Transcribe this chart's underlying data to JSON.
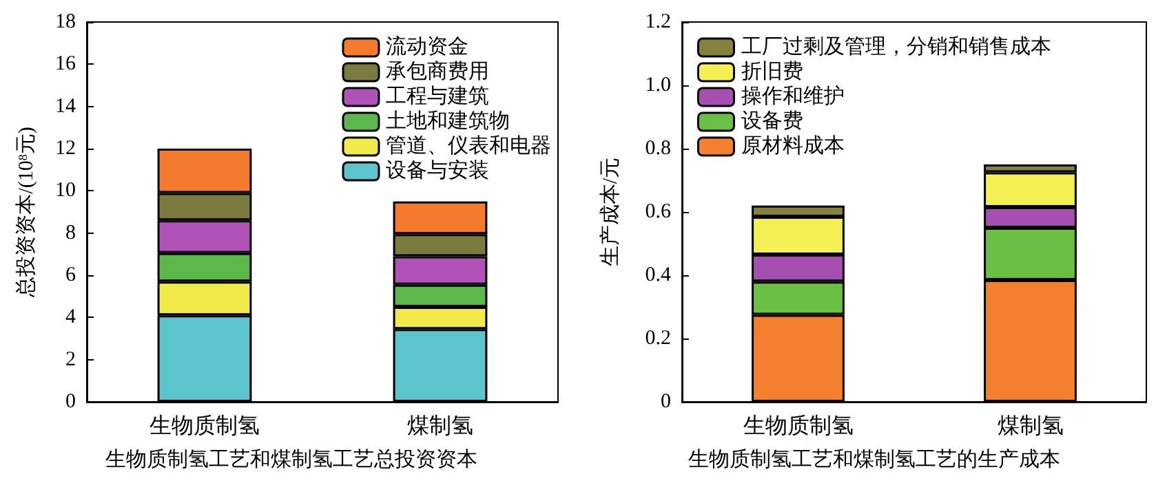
{
  "chart_data": [
    {
      "type": "bar",
      "stacked": true,
      "title": "生物质制氢工艺和煤制氢工艺总投资资本",
      "ylabel": "总投资资本/(10$^{8}$元)",
      "categories": [
        "生物质制氢",
        "煤制氢"
      ],
      "ylim": [
        0,
        18
      ],
      "yticks": [
        0,
        2,
        4,
        6,
        8,
        10,
        12,
        14,
        16,
        18
      ],
      "legend": "top right",
      "series": [
        {
          "name": "设备与安装",
          "color": "#5cc4cc",
          "values": [
            4.1,
            3.45
          ]
        },
        {
          "name": "管道、仪表和电器",
          "color": "#f0ea4a",
          "values": [
            1.6,
            1.05
          ]
        },
        {
          "name": "土地和建筑物",
          "color": "#5cb84a",
          "values": [
            1.35,
            1.05
          ]
        },
        {
          "name": "工程与建筑",
          "color": "#b052b8",
          "values": [
            1.55,
            1.35
          ]
        },
        {
          "name": "承包商费用",
          "color": "#7c7a3e",
          "values": [
            1.3,
            1.05
          ]
        },
        {
          "name": "流动资金",
          "color": "#f47a2e",
          "values": [
            2.1,
            1.55
          ]
        }
      ]
    },
    {
      "type": "bar",
      "stacked": true,
      "title": "生物质制氢工艺和煤制氢工艺的生产成本",
      "ylabel": "生产成本/元",
      "categories": [
        "生物质制氢",
        "煤制氢"
      ],
      "ylim": [
        0,
        1.2
      ],
      "yticks": [
        0,
        0.2,
        0.4,
        0.6,
        0.8,
        {
          "value": 1,
          "label": "1.0"
        },
        1.2
      ],
      "legend": "top left",
      "series": [
        {
          "name": "原材料成本",
          "color": "#f4802f",
          "values": [
            0.275,
            0.385
          ]
        },
        {
          "name": "设备费",
          "color": "#6cbf45",
          "values": [
            0.105,
            0.165
          ]
        },
        {
          "name": "操作和维护",
          "color": "#a54fb0",
          "values": [
            0.085,
            0.065
          ]
        },
        {
          "name": "折旧费",
          "color": "#f3ef55",
          "values": [
            0.12,
            0.11
          ]
        },
        {
          "name": "工厂过剩及管理，分销和销售成本",
          "color": "#85813f",
          "values": [
            0.035,
            0.025
          ]
        }
      ]
    }
  ]
}
